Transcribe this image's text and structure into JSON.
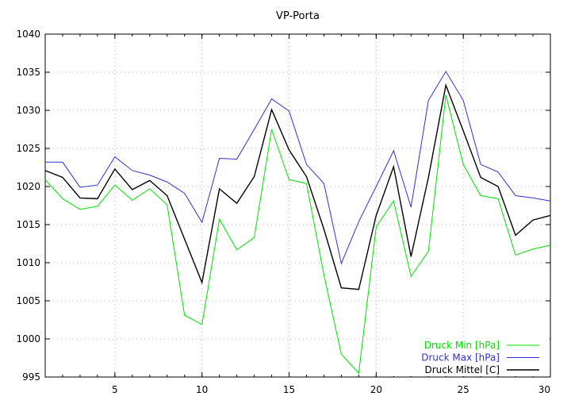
{
  "chart_data": {
    "type": "line",
    "title": "VP-Porta",
    "xlabel": "",
    "ylabel": "",
    "xlim": [
      1,
      30
    ],
    "ylim": [
      995,
      1040
    ],
    "x_ticks": [
      5,
      10,
      15,
      20,
      25,
      30
    ],
    "y_ticks": [
      995,
      1000,
      1005,
      1010,
      1015,
      1020,
      1025,
      1030,
      1035,
      1040
    ],
    "grid": true,
    "legend_position": "bottom-right",
    "x": [
      1,
      2,
      3,
      4,
      5,
      6,
      7,
      8,
      9,
      10,
      11,
      12,
      13,
      14,
      15,
      16,
      17,
      18,
      19,
      20,
      21,
      22,
      23,
      24,
      25,
      26,
      27,
      28,
      29,
      30
    ],
    "series": [
      {
        "name": "Druck Min [hPa]",
        "color": "#00e000",
        "values": [
          1020.9,
          1018.4,
          1017.0,
          1017.4,
          1020.2,
          1018.2,
          1019.7,
          1017.6,
          1003.1,
          1001.9,
          1015.7,
          1011.7,
          1013.3,
          1027.5,
          1020.9,
          1020.4,
          1008.4,
          998.0,
          995.5,
          1014.7,
          1018.1,
          1008.2,
          1011.5,
          1032.0,
          1022.9,
          1018.8,
          1018.4,
          1011.0,
          1011.8,
          1012.3
        ]
      },
      {
        "name": "Druck Max [hPa]",
        "color": "#3030d0",
        "values": [
          1023.2,
          1023.2,
          1019.9,
          1020.2,
          1023.9,
          1022.1,
          1021.5,
          1020.6,
          1019.1,
          1015.3,
          1023.7,
          1023.6,
          1027.5,
          1031.5,
          1029.9,
          1022.9,
          1020.4,
          1009.9,
          1015.4,
          1020.0,
          1024.7,
          1017.3,
          1031.3,
          1035.1,
          1031.3,
          1022.9,
          1021.9,
          1018.8,
          1018.5,
          1018.1
        ]
      },
      {
        "name": "Druck Mittel [C]",
        "color": "#000000",
        "values": [
          1022.1,
          1021.2,
          1018.5,
          1018.4,
          1022.3,
          1019.6,
          1020.8,
          1018.8,
          1013.1,
          1007.4,
          1019.7,
          1017.8,
          1021.3,
          1030.1,
          1024.8,
          1021.3,
          1014.4,
          1006.7,
          1006.5,
          1016.2,
          1022.6,
          1010.8,
          1021.2,
          1033.3,
          1027.3,
          1021.2,
          1020.0,
          1013.6,
          1015.6,
          1016.2
        ]
      }
    ]
  }
}
